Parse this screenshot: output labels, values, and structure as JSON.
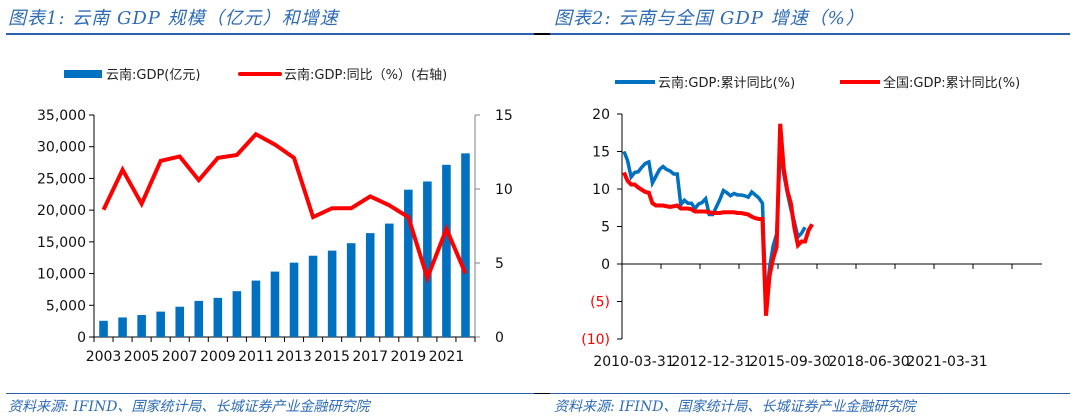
{
  "panels": [
    {
      "title": "图表1:  云南 GDP 规模（亿元）和增速",
      "source": "资料来源: IFIND、国家统计局、长城证券产业金融研究院"
    },
    {
      "title": "图表2:  云南与全国 GDP 增速（%）",
      "source": "资料来源: IFIND、国家统计局、长城证券产业金融研究院"
    }
  ],
  "colors": {
    "blue": "#0070c0",
    "red": "#ff0000",
    "title_blue": "#2e6bb5",
    "axis": "#000000",
    "right_axis": "#808080",
    "negative_label": "#ff0000"
  },
  "chart_data": [
    {
      "type": "bar+line",
      "title": "云南 GDP 规模（亿元）和增速",
      "legend_position": "top",
      "categories": [
        "2003",
        "2004",
        "2005",
        "2006",
        "2007",
        "2008",
        "2009",
        "2010",
        "2011",
        "2012",
        "2013",
        "2014",
        "2015",
        "2016",
        "2017",
        "2018",
        "2019",
        "2020",
        "2021",
        "2022"
      ],
      "x_tick_labels": [
        "2003",
        "2005",
        "2007",
        "2009",
        "2011",
        "2013",
        "2015",
        "2017",
        "2019",
        "2021"
      ],
      "series": [
        {
          "name": "云南:GDP(亿元)",
          "type": "bar",
          "axis": "left",
          "color": "#0070c0",
          "values": [
            2556,
            3082,
            3462,
            4001,
            4772,
            5692,
            6170,
            7224,
            8893,
            10310,
            11721,
            12815,
            13619,
            14788,
            16376,
            17881,
            23224,
            24522,
            27147,
            28954
          ]
        },
        {
          "name": "云南:GDP:同比（%）(右轴)",
          "type": "line",
          "axis": "right",
          "color": "#ff0000",
          "values": [
            8.6,
            11.3,
            9.0,
            11.9,
            12.2,
            10.6,
            12.1,
            12.3,
            13.7,
            13.0,
            12.1,
            8.1,
            8.7,
            8.7,
            9.5,
            8.9,
            8.1,
            4.0,
            7.3,
            4.3
          ]
        }
      ],
      "left_axis": {
        "ylim": [
          0,
          35000
        ],
        "ticks": [
          0,
          5000,
          10000,
          15000,
          20000,
          25000,
          30000,
          35000
        ],
        "tick_labels": [
          "0",
          "5,000",
          "10,000",
          "15,000",
          "20,000",
          "25,000",
          "30,000",
          "35,000"
        ]
      },
      "right_axis": {
        "ylim": [
          0,
          15
        ],
        "ticks": [
          0,
          5,
          10,
          15
        ],
        "tick_labels": [
          "0",
          "5",
          "10",
          "15"
        ]
      },
      "grid": false
    },
    {
      "type": "line",
      "title": "云南与全国 GDP 增速（%）",
      "legend_position": "top",
      "x_start": "2010-03-31",
      "x_frequency": "quarterly",
      "x_tick_labels": [
        "2010-03-31",
        "2012-12-31",
        "2015-09-30",
        "2018-06-30",
        "2021-03-31"
      ],
      "series": [
        {
          "name": "云南:GDP:累计同比(%)",
          "color": "#0070c0",
          "values": [
            15.0,
            13.8,
            11.6,
            12.2,
            12.3,
            12.9,
            13.4,
            13.6,
            10.8,
            11.7,
            12.6,
            13.0,
            12.6,
            12.4,
            12.0,
            12.0,
            7.9,
            8.5,
            8.1,
            8.1,
            7.4,
            8.0,
            8.2,
            8.7,
            6.6,
            6.6,
            7.6,
            8.6,
            9.8,
            9.5,
            9.1,
            9.4,
            9.2,
            9.2,
            9.1,
            8.9,
            9.6,
            9.2,
            8.8,
            8.1,
            -5.3,
            -0.5,
            2.4,
            4.0,
            15.3,
            12.0,
            9.5,
            7.3,
            5.6,
            3.6,
            4.1,
            4.9
          ],
          "note": "cumulative YoY, read from chart"
        },
        {
          "name": "全国:GDP:累计同比(%)",
          "color": "#ff0000",
          "values": [
            12.2,
            11.1,
            10.6,
            10.6,
            10.2,
            9.9,
            9.6,
            9.5,
            8.1,
            7.8,
            7.8,
            7.8,
            7.7,
            7.6,
            7.7,
            7.8,
            7.4,
            7.4,
            7.4,
            7.3,
            7.0,
            7.0,
            7.0,
            7.0,
            6.9,
            6.8,
            6.8,
            6.8,
            6.9,
            6.9,
            6.9,
            6.9,
            6.8,
            6.8,
            6.7,
            6.6,
            6.3,
            6.1,
            6.0,
            6.0,
            -6.9,
            -1.6,
            0.7,
            2.3,
            18.7,
            12.7,
            9.8,
            8.1,
            4.8,
            2.5,
            3.0,
            3.0,
            4.5,
            5.3
          ]
        }
      ],
      "y_axis": {
        "ylim": [
          -10,
          20
        ],
        "ticks": [
          -10,
          -5,
          0,
          5,
          10,
          15,
          20
        ],
        "tick_labels": [
          "(10)",
          "(5)",
          "0",
          "5",
          "10",
          "15",
          "20"
        ]
      },
      "grid": false
    }
  ]
}
